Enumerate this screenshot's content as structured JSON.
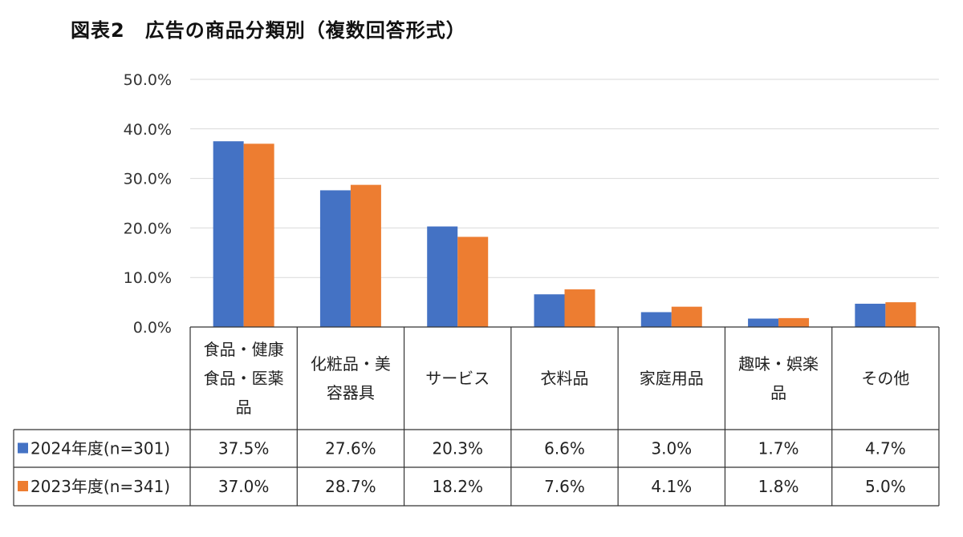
{
  "title": "図表2　広告の商品分類別（複数回答形式）",
  "colors": {
    "s2024": "#4472C4",
    "s2023": "#ED7D31",
    "grid": "#d9d9d9",
    "border": "#333333"
  },
  "chart_data": {
    "type": "bar",
    "title": "図表2　広告の商品分類別（複数回答形式）",
    "ylim": [
      0,
      50
    ],
    "yticks": [
      "0.0%",
      "10.0%",
      "20.0%",
      "30.0%",
      "40.0%",
      "50.0%"
    ],
    "grid": true,
    "legend": "table-left",
    "categories": [
      [
        "食品・健康",
        "食品・医薬",
        "品"
      ],
      [
        "化粧品・美",
        "容器具"
      ],
      [
        "サービス"
      ],
      [
        "衣料品"
      ],
      [
        "家庭用品"
      ],
      [
        "趣味・娯楽",
        "品"
      ],
      [
        "その他"
      ]
    ],
    "series": [
      {
        "name": "2024年度(n=301)",
        "values": [
          37.5,
          27.6,
          20.3,
          6.6,
          3.0,
          1.7,
          4.7
        ],
        "labels": [
          "37.5%",
          "27.6%",
          "20.3%",
          "6.6%",
          "3.0%",
          "1.7%",
          "4.7%"
        ]
      },
      {
        "name": "2023年度(n=341)",
        "values": [
          37.0,
          28.7,
          18.2,
          7.6,
          4.1,
          1.8,
          5.0
        ],
        "labels": [
          "37.0%",
          "28.7%",
          "18.2%",
          "7.6%",
          "4.1%",
          "1.8%",
          "5.0%"
        ]
      }
    ]
  }
}
